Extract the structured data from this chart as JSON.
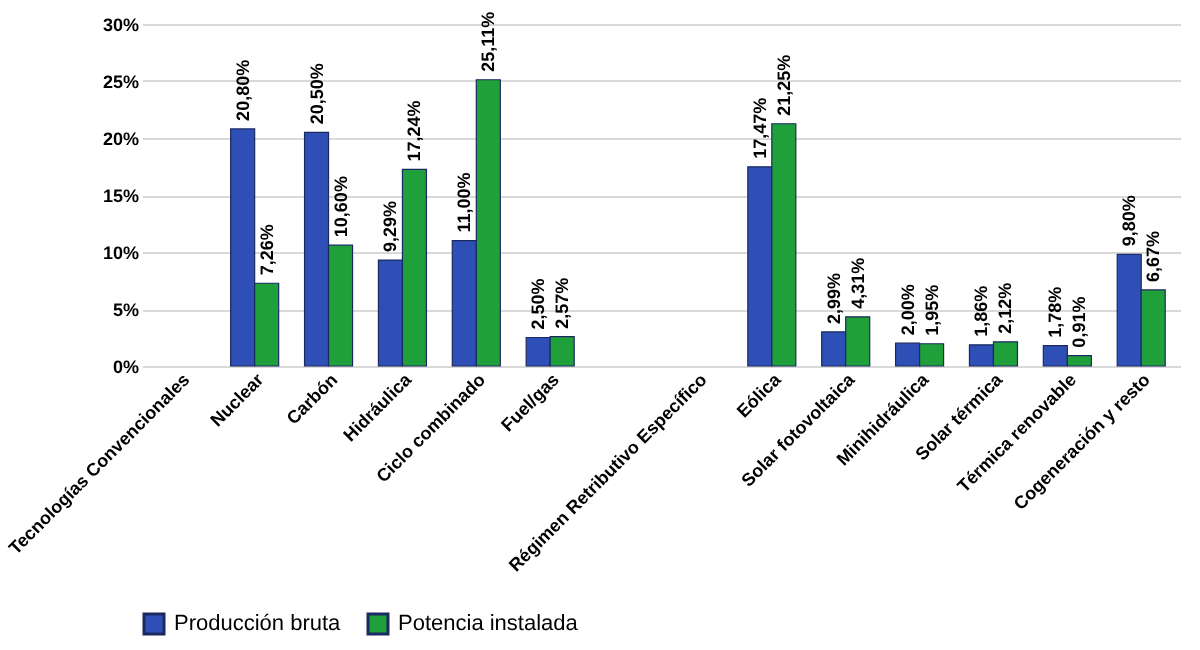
{
  "chart_data": {
    "type": "bar",
    "categories": [
      "Tecnologías Convencionales",
      "Nuclear",
      "Carbón",
      "Hidráulica",
      "Ciclo combinado",
      "Fuel/gas",
      null,
      "Régimen Retributivo Específico",
      "Eólica",
      "Solar fotovoltaica",
      "Minihidráulica",
      "Solar térmica",
      "Térmica renovable",
      "Cogeneración y resto"
    ],
    "series": [
      {
        "name": "Producción bruta",
        "color": "#2e4fb5",
        "values": [
          null,
          20.8,
          20.5,
          9.29,
          11.0,
          2.5,
          null,
          null,
          17.47,
          2.99,
          2.0,
          1.86,
          1.78,
          9.8
        ],
        "value_labels": [
          null,
          "20,80%",
          "20,50%",
          "9,29%",
          "11,00%",
          "2,50%",
          null,
          null,
          "17,47%",
          "2,99%",
          "2,00%",
          "1,86%",
          "1,78%",
          "9,80%"
        ]
      },
      {
        "name": "Potencia instalada",
        "color": "#1fa03a",
        "values": [
          null,
          7.26,
          10.6,
          17.24,
          25.11,
          2.57,
          null,
          null,
          21.25,
          4.31,
          1.95,
          2.12,
          0.91,
          6.67
        ],
        "value_labels": [
          null,
          "7,26%",
          "10,60%",
          "17,24%",
          "25,11%",
          "2,57%",
          null,
          null,
          "21,25%",
          "4,31%",
          "1,95%",
          "2,12%",
          "0,91%",
          "6,67%"
        ]
      }
    ],
    "ylim": [
      0,
      30
    ],
    "yticks": [
      {
        "value": 0,
        "label": "0%"
      },
      {
        "value": 5,
        "label": "5%"
      },
      {
        "value": 10,
        "label": "10%"
      },
      {
        "value": 15,
        "label": "15%"
      },
      {
        "value": 20,
        "label": "20%"
      },
      {
        "value": 25,
        "label": "25%"
      },
      {
        "value": 30,
        "label": "30%"
      }
    ],
    "grid": "y",
    "legend": "bottom"
  }
}
